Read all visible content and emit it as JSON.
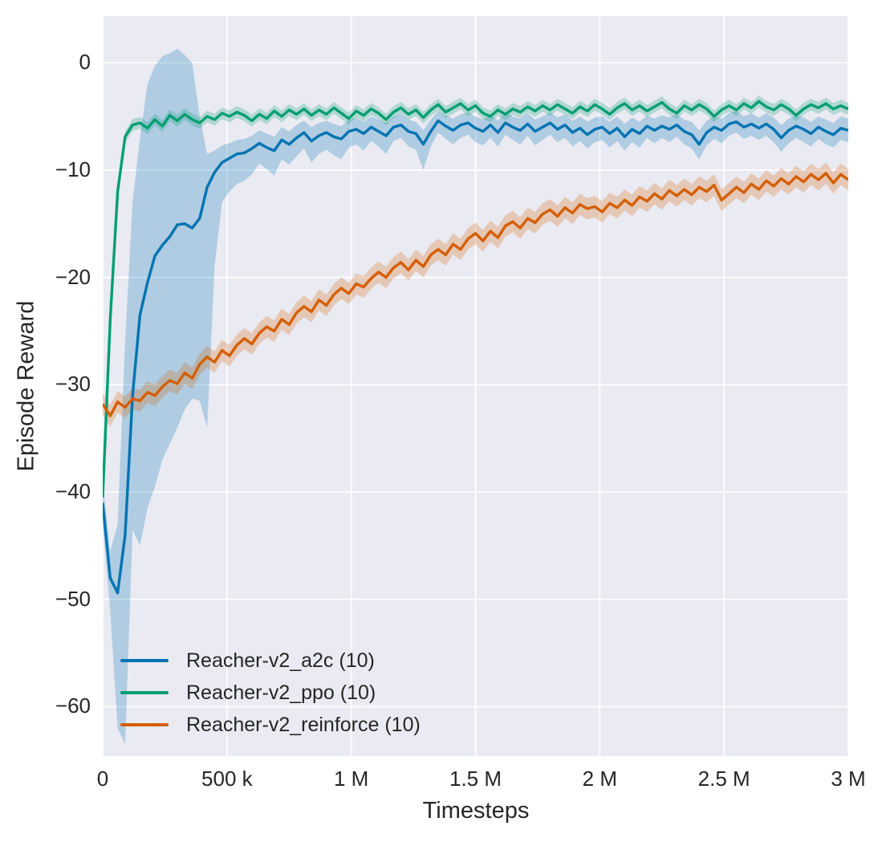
{
  "figure": {
    "background": "#ffffff"
  },
  "chart_data": {
    "type": "line",
    "title": "",
    "xlabel": "Timesteps",
    "ylabel": "Episode Reward",
    "xlim": [
      0,
      3000000
    ],
    "ylim": [
      -64.6,
      4.35
    ],
    "grid": true,
    "plot_background": "#EAEAF2",
    "grid_color": "#FFFFFF",
    "text_color": "#262626",
    "legend_position": "lower left",
    "band_alpha": 0.25,
    "line_width": 3.4,
    "xticks": [
      {
        "value": 0,
        "label": "0"
      },
      {
        "value": 500000,
        "label": "500 k"
      },
      {
        "value": 1000000,
        "label": "1 M"
      },
      {
        "value": 1500000,
        "label": "1.5 M"
      },
      {
        "value": 2000000,
        "label": "2 M"
      },
      {
        "value": 2500000,
        "label": "2.5 M"
      },
      {
        "value": 3000000,
        "label": "3 M"
      }
    ],
    "yticks": [
      {
        "value": 0,
        "label": "0"
      },
      {
        "value": -10,
        "label": "−10"
      },
      {
        "value": -20,
        "label": "−20"
      },
      {
        "value": -30,
        "label": "−30"
      },
      {
        "value": -40,
        "label": "−40"
      },
      {
        "value": -50,
        "label": "−50"
      },
      {
        "value": -60,
        "label": "−60"
      }
    ],
    "x_start": 0,
    "x_step": 30000,
    "n_points": 101,
    "series": [
      {
        "name": "a2c",
        "label": "Reacher-v2_a2c (10)",
        "color": "#0173b2",
        "values": [
          -41.0,
          -48.0,
          -49.4,
          -44.0,
          -31.0,
          -23.5,
          -20.5,
          -18.0,
          -17.0,
          -16.2,
          -15.1,
          -15.0,
          -15.4,
          -14.5,
          -11.6,
          -10.2,
          -9.3,
          -8.9,
          -8.5,
          -8.4,
          -8.0,
          -7.5,
          -7.9,
          -8.2,
          -7.2,
          -7.6,
          -7.0,
          -6.5,
          -7.3,
          -6.8,
          -6.5,
          -6.9,
          -7.1,
          -6.4,
          -6.2,
          -6.6,
          -6.0,
          -6.4,
          -6.8,
          -6.0,
          -5.8,
          -6.4,
          -6.6,
          -7.6,
          -6.4,
          -5.4,
          -5.9,
          -6.3,
          -5.8,
          -5.6,
          -6.1,
          -6.4,
          -5.8,
          -6.5,
          -5.6,
          -6.0,
          -6.3,
          -5.7,
          -6.4,
          -6.0,
          -5.6,
          -6.2,
          -5.8,
          -6.5,
          -6.1,
          -6.7,
          -6.2,
          -6.0,
          -6.6,
          -6.1,
          -6.9,
          -6.2,
          -6.6,
          -5.9,
          -6.3,
          -5.9,
          -6.2,
          -5.8,
          -6.4,
          -6.7,
          -7.6,
          -6.5,
          -6.0,
          -6.3,
          -5.7,
          -5.5,
          -6.0,
          -5.7,
          -6.1,
          -5.7,
          -6.2,
          -7.0,
          -6.3,
          -5.9,
          -6.2,
          -6.6,
          -6.0,
          -6.4,
          -6.7,
          -6.1,
          -6.3
        ],
        "band_upper": [
          -39.0,
          -45.5,
          -43.0,
          -26.0,
          -13.0,
          -7.0,
          -2.0,
          -0.3,
          0.6,
          0.9,
          1.3,
          0.7,
          0.0,
          -5.0,
          -8.5,
          -8.2,
          -7.7,
          -7.5,
          -7.2,
          -7.1,
          -6.8,
          -6.3,
          -6.6,
          -6.9,
          -6.0,
          -6.4,
          -5.8,
          -5.4,
          -6.0,
          -5.6,
          -5.4,
          -5.7,
          -5.9,
          -5.3,
          -5.1,
          -5.5,
          -5.0,
          -5.3,
          -5.6,
          -5.0,
          -4.8,
          -5.3,
          -5.5,
          -6.3,
          -5.3,
          -4.5,
          -4.9,
          -5.2,
          -4.8,
          -4.6,
          -5.0,
          -5.3,
          -4.8,
          -5.4,
          -4.6,
          -5.0,
          -5.2,
          -4.7,
          -5.3,
          -5.0,
          -4.6,
          -5.1,
          -4.8,
          -5.4,
          -5.0,
          -5.5,
          -5.1,
          -5.0,
          -5.5,
          -5.0,
          -5.7,
          -5.1,
          -5.5,
          -4.9,
          -5.2,
          -4.9,
          -5.1,
          -4.8,
          -5.3,
          -5.5,
          -6.3,
          -5.4,
          -5.0,
          -5.2,
          -4.7,
          -4.5,
          -5.0,
          -4.7,
          -5.1,
          -4.7,
          -5.1,
          -5.8,
          -5.2,
          -4.9,
          -5.1,
          -5.5,
          -5.0,
          -5.3,
          -5.6,
          -5.0,
          -5.2
        ],
        "band_lower": [
          -43.0,
          -51.0,
          -62.0,
          -63.5,
          -43.5,
          -45.0,
          -41.5,
          -39.5,
          -37.0,
          -35.5,
          -34.0,
          -32.3,
          -31.3,
          -31.5,
          -34.0,
          -19.0,
          -13.0,
          -12.0,
          -11.3,
          -11.0,
          -10.4,
          -9.4,
          -9.9,
          -10.5,
          -9.0,
          -9.5,
          -8.7,
          -8.0,
          -9.3,
          -8.5,
          -8.1,
          -8.6,
          -9.0,
          -7.9,
          -7.6,
          -8.2,
          -7.3,
          -7.8,
          -8.5,
          -7.3,
          -7.0,
          -7.8,
          -8.1,
          -10.0,
          -7.8,
          -6.5,
          -7.1,
          -7.6,
          -7.0,
          -6.7,
          -7.4,
          -7.7,
          -7.0,
          -7.8,
          -6.7,
          -7.2,
          -7.6,
          -6.8,
          -7.7,
          -7.2,
          -6.7,
          -7.4,
          -7.0,
          -7.8,
          -7.3,
          -8.0,
          -7.4,
          -7.2,
          -7.9,
          -7.3,
          -8.2,
          -7.4,
          -7.9,
          -7.0,
          -7.5,
          -7.0,
          -7.4,
          -6.9,
          -7.6,
          -8.0,
          -9.0,
          -7.7,
          -7.1,
          -7.5,
          -6.8,
          -6.5,
          -7.1,
          -6.8,
          -7.2,
          -6.8,
          -7.4,
          -8.3,
          -7.5,
          -7.0,
          -7.4,
          -7.8,
          -7.1,
          -7.6,
          -7.9,
          -7.2,
          -7.4
        ]
      },
      {
        "name": "ppo",
        "label": "Reacher-v2_ppo (10)",
        "color": "#029e73",
        "band_halfwidth": 0.55,
        "values": [
          -40.5,
          -24.0,
          -12.0,
          -6.9,
          -5.8,
          -5.6,
          -6.1,
          -5.3,
          -5.9,
          -4.9,
          -5.4,
          -4.8,
          -5.3,
          -5.6,
          -5.0,
          -5.3,
          -4.7,
          -5.0,
          -4.6,
          -4.9,
          -5.4,
          -4.8,
          -5.2,
          -4.5,
          -5.0,
          -4.4,
          -4.8,
          -4.3,
          -4.9,
          -4.4,
          -4.8,
          -4.2,
          -4.7,
          -5.2,
          -4.5,
          -4.9,
          -4.3,
          -4.7,
          -5.3,
          -4.6,
          -4.2,
          -4.8,
          -4.4,
          -5.1,
          -4.4,
          -3.9,
          -4.6,
          -4.2,
          -3.8,
          -4.4,
          -4.0,
          -4.7,
          -5.0,
          -4.4,
          -4.8,
          -4.3,
          -4.6,
          -4.1,
          -4.5,
          -4.0,
          -4.4,
          -3.9,
          -4.3,
          -4.7,
          -4.1,
          -4.5,
          -3.9,
          -4.3,
          -4.8,
          -4.2,
          -3.8,
          -4.4,
          -4.0,
          -4.5,
          -4.1,
          -3.7,
          -4.3,
          -4.7,
          -4.0,
          -4.4,
          -3.9,
          -4.3,
          -5.0,
          -4.4,
          -4.0,
          -4.4,
          -3.8,
          -4.2,
          -3.6,
          -4.1,
          -4.4,
          -3.9,
          -4.3,
          -4.9,
          -4.3,
          -3.9,
          -4.2,
          -3.8,
          -4.3,
          -4.0,
          -4.3
        ]
      },
      {
        "name": "reinforce",
        "label": "Reacher-v2_reinforce (10)",
        "color": "#d55e00",
        "band_halfwidth": 1.0,
        "values": [
          -31.8,
          -32.9,
          -31.6,
          -32.1,
          -31.3,
          -31.5,
          -30.7,
          -31.0,
          -30.2,
          -29.6,
          -29.9,
          -28.9,
          -29.4,
          -28.1,
          -27.4,
          -27.9,
          -26.8,
          -27.3,
          -26.3,
          -25.7,
          -26.2,
          -25.2,
          -24.6,
          -25.0,
          -23.9,
          -24.4,
          -23.3,
          -22.7,
          -23.2,
          -22.1,
          -22.6,
          -21.6,
          -21.0,
          -21.5,
          -20.6,
          -20.9,
          -20.1,
          -19.5,
          -20.0,
          -19.1,
          -18.6,
          -19.3,
          -18.4,
          -19.0,
          -17.9,
          -17.4,
          -17.9,
          -16.9,
          -17.4,
          -16.4,
          -15.9,
          -16.6,
          -15.7,
          -16.3,
          -15.2,
          -14.8,
          -15.4,
          -14.5,
          -14.9,
          -14.1,
          -13.7,
          -14.3,
          -13.5,
          -14.0,
          -13.2,
          -13.6,
          -13.4,
          -13.9,
          -13.1,
          -13.5,
          -12.8,
          -13.3,
          -12.5,
          -12.9,
          -12.2,
          -12.7,
          -11.9,
          -12.4,
          -11.8,
          -12.3,
          -11.6,
          -12.0,
          -11.4,
          -12.8,
          -12.2,
          -11.6,
          -12.1,
          -11.3,
          -11.8,
          -11.0,
          -11.5,
          -10.8,
          -11.3,
          -10.6,
          -11.1,
          -10.4,
          -10.9,
          -10.3,
          -11.2,
          -10.4,
          -10.9
        ]
      }
    ]
  }
}
